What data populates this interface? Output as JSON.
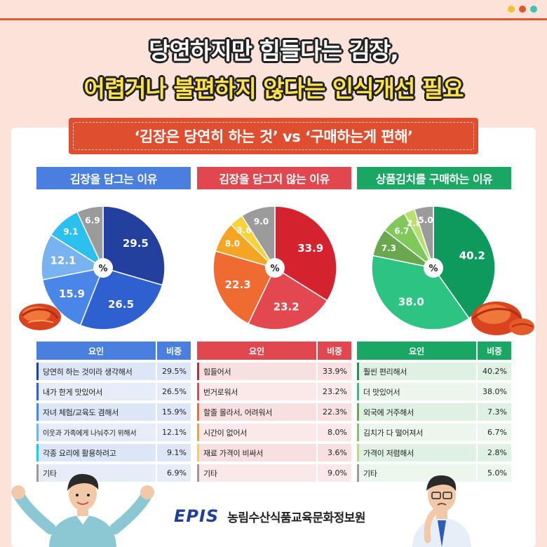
{
  "headline": {
    "line1": "당연하지만 힘들다는 김장,",
    "line2": "어렵거나 불편하지 않다는 인식개선 필요"
  },
  "subtitle": "‘김장은 당연히 하는 것’ vs ‘구매하는게 편해’",
  "center_label": "%",
  "colors": {
    "blue": "#4a7fe0",
    "red": "#e0474f",
    "green": "#1aa663"
  },
  "table_header": {
    "factor": "요인",
    "ratio": "비중"
  },
  "chart_data": [
    {
      "type": "pie",
      "title": "김장을 담그는 이유",
      "categories": [
        "당연히 하는 것이라 생각해서",
        "내가 한게 맛있어서",
        "자녀 체험/교육도 겸해서",
        "이웃과 가족에게 나눠주기 위해서",
        "각종 요리에 활용하려고",
        "기타"
      ],
      "values": [
        29.5,
        26.5,
        15.9,
        12.1,
        9.1,
        6.9
      ],
      "labels": [
        "29.5",
        "26.5",
        "15.9",
        "12.1",
        "9.1",
        "6.9"
      ],
      "ratios": [
        "29.5%",
        "26.5%",
        "15.9%",
        "12.1%",
        "9.1%",
        "6.9%"
      ],
      "colors": [
        "#23409e",
        "#2f60cf",
        "#4a86e8",
        "#79b3ef",
        "#2bc0ee",
        "#9b9b9b"
      ]
    },
    {
      "type": "pie",
      "title": "김장을 담그지 않는 이유",
      "categories": [
        "힘들어서",
        "번거로워서",
        "할줄 몰라서, 어려워서",
        "시간이 없어서",
        "재료 가격이 비싸서",
        "기타"
      ],
      "values": [
        33.9,
        23.2,
        22.3,
        8.0,
        3.6,
        9.0
      ],
      "labels": [
        "33.9",
        "23.2",
        "22.3",
        "8.0",
        "3.6",
        "9.0"
      ],
      "ratios": [
        "33.9%",
        "23.2%",
        "22.3%",
        "8.0%",
        "3.6%",
        "9.0%"
      ],
      "colors": [
        "#d4232e",
        "#e4484f",
        "#ef6b32",
        "#f6a423",
        "#f7d23d",
        "#9b9b9b"
      ]
    },
    {
      "type": "pie",
      "title": "상품김치를 구매하는 이유",
      "categories": [
        "훨씬 편리해서",
        "더 맛있어서",
        "외국에 거주해서",
        "김치가 다 떨어져서",
        "가격이 저렴해서",
        "기타"
      ],
      "values": [
        40.2,
        38.0,
        7.3,
        6.7,
        2.8,
        5.0
      ],
      "labels": [
        "40.2",
        "38.0",
        "7.3",
        "6.7",
        "2.8",
        "5.0"
      ],
      "ratios": [
        "40.2%",
        "38.0%",
        "7.3%",
        "6.7%",
        "2.8%",
        "5.0%"
      ],
      "colors": [
        "#0f9a5d",
        "#2dc383",
        "#6aa84f",
        "#7ec85c",
        "#b8e06e",
        "#9b9b9b"
      ]
    }
  ],
  "footer": {
    "logo": "EPIS",
    "org": "농림수산식품교육문화정보원"
  }
}
